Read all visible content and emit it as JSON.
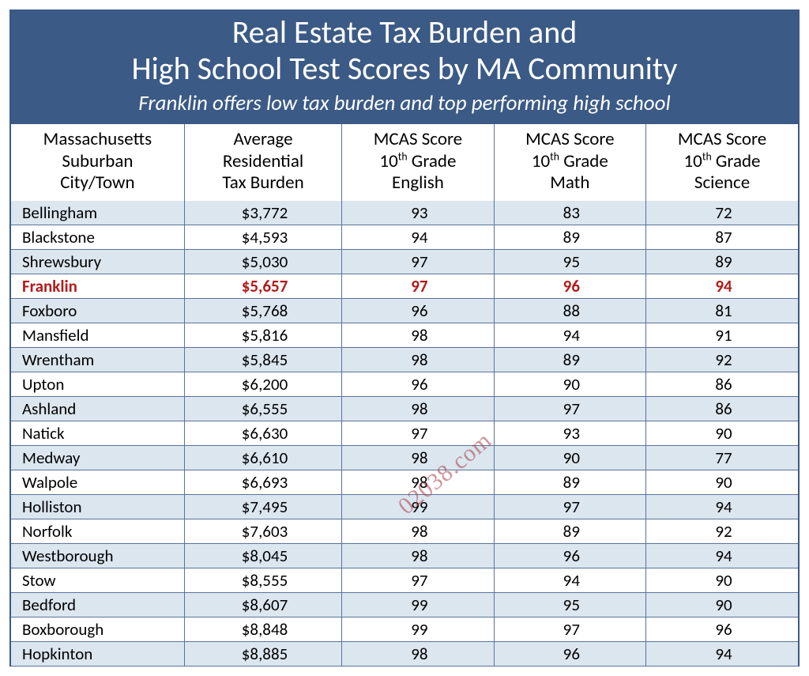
{
  "header": {
    "title_line1": "Real Estate Tax Burden and",
    "title_line2": "High School Test Scores by MA Community",
    "subtitle": "Franklin offers low tax burden and top performing high school"
  },
  "colors": {
    "header_bg": "#3b5a85",
    "header_text": "#ffffff",
    "row_odd_bg": "#dbe6ef",
    "row_even_bg": "#ffffff",
    "border": "#5b7399",
    "highlight_text": "#b11b1b",
    "watermark": "rgba(168,60,70,0.55)"
  },
  "watermark_text": "02038.com",
  "columns": [
    {
      "l1": "Massachusetts",
      "l2": "Suburban",
      "l3": "City/Town"
    },
    {
      "l1": "Average",
      "l2": "Residential",
      "l3": "Tax Burden"
    },
    {
      "l1": "MCAS Score",
      "l2_pre": "10",
      "l2_suf": "th",
      "l2_post": " Grade",
      "l3": "English"
    },
    {
      "l1": "MCAS Score",
      "l2_pre": "10",
      "l2_suf": "th",
      "l2_post": " Grade",
      "l3": "Math"
    },
    {
      "l1": "MCAS Score",
      "l2_pre": "10",
      "l2_suf": "th",
      "l2_post": " Grade",
      "l3": "Science"
    }
  ],
  "rows": [
    {
      "town": "Bellingham",
      "tax": "$3,772",
      "eng": "93",
      "math": "83",
      "sci": "72",
      "hl": false
    },
    {
      "town": "Blackstone",
      "tax": "$4,593",
      "eng": "94",
      "math": "89",
      "sci": "87",
      "hl": false
    },
    {
      "town": "Shrewsbury",
      "tax": "$5,030",
      "eng": "97",
      "math": "95",
      "sci": "89",
      "hl": false
    },
    {
      "town": "Franklin",
      "tax": "$5,657",
      "eng": "97",
      "math": "96",
      "sci": "94",
      "hl": true
    },
    {
      "town": "Foxboro",
      "tax": "$5,768",
      "eng": "96",
      "math": "88",
      "sci": "81",
      "hl": false
    },
    {
      "town": "Mansfield",
      "tax": "$5,816",
      "eng": "98",
      "math": "94",
      "sci": "91",
      "hl": false
    },
    {
      "town": "Wrentham",
      "tax": "$5,845",
      "eng": "98",
      "math": "89",
      "sci": "92",
      "hl": false
    },
    {
      "town": "Upton",
      "tax": "$6,200",
      "eng": "96",
      "math": "90",
      "sci": "86",
      "hl": false
    },
    {
      "town": "Ashland",
      "tax": "$6,555",
      "eng": "98",
      "math": "97",
      "sci": "86",
      "hl": false
    },
    {
      "town": "Natick",
      "tax": "$6,630",
      "eng": "97",
      "math": "93",
      "sci": "90",
      "hl": false
    },
    {
      "town": "Medway",
      "tax": "$6,610",
      "eng": "98",
      "math": "90",
      "sci": "77",
      "hl": false
    },
    {
      "town": "Walpole",
      "tax": "$6,693",
      "eng": "98",
      "math": "89",
      "sci": "90",
      "hl": false
    },
    {
      "town": "Holliston",
      "tax": "$7,495",
      "eng": "99",
      "math": "97",
      "sci": "94",
      "hl": false
    },
    {
      "town": "Norfolk",
      "tax": "$7,603",
      "eng": "98",
      "math": "89",
      "sci": "92",
      "hl": false
    },
    {
      "town": "Westborough",
      "tax": "$8,045",
      "eng": "98",
      "math": "96",
      "sci": "94",
      "hl": false
    },
    {
      "town": "Stow",
      "tax": "$8,555",
      "eng": "97",
      "math": "94",
      "sci": "90",
      "hl": false
    },
    {
      "town": "Bedford",
      "tax": "$8,607",
      "eng": "99",
      "math": "95",
      "sci": "90",
      "hl": false
    },
    {
      "town": "Boxborough",
      "tax": "$8,848",
      "eng": "99",
      "math": "97",
      "sci": "96",
      "hl": false
    },
    {
      "town": "Hopkinton",
      "tax": "$8,885",
      "eng": "98",
      "math": "96",
      "sci": "94",
      "hl": false
    }
  ]
}
